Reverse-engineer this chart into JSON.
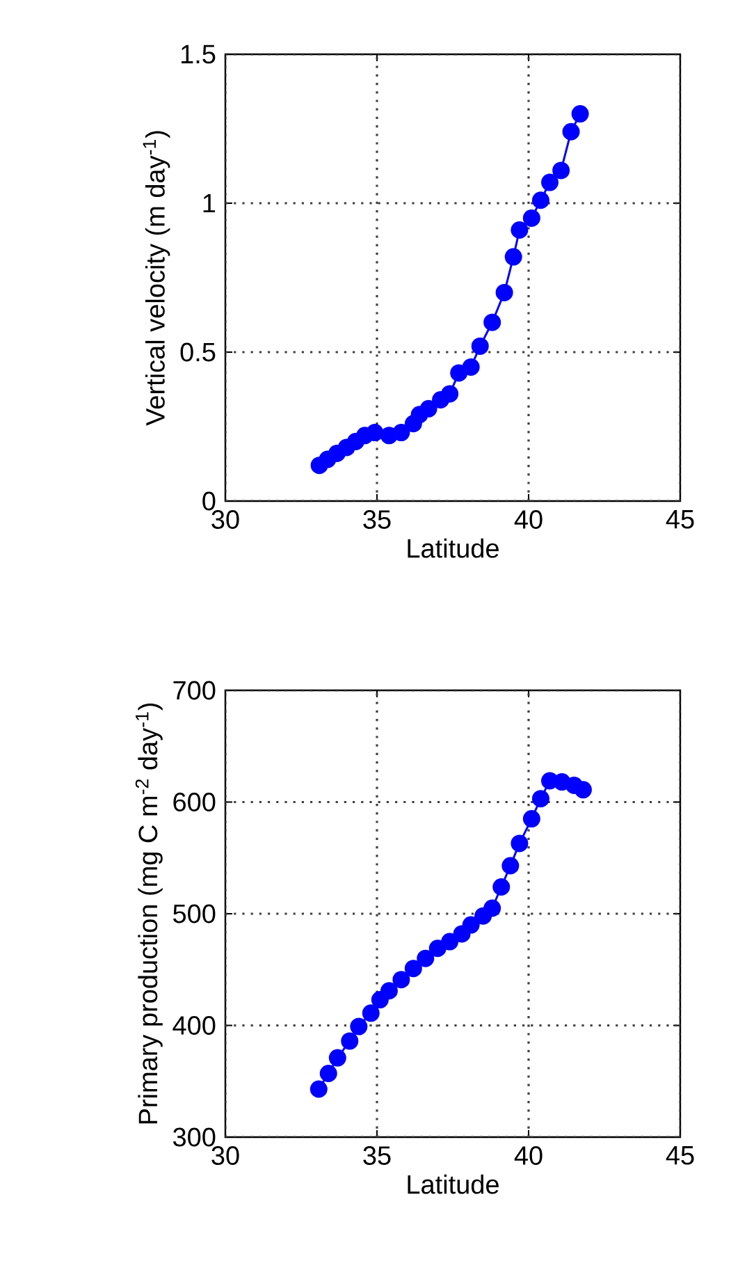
{
  "chart_data": [
    {
      "type": "line",
      "xlabel": "Latitude",
      "ylabel": "Vertical velocity (m day$^{-1}$)",
      "color": "#0000ff",
      "marker": "circle",
      "line_style": "solid",
      "grid": true,
      "xlim": [
        30,
        45
      ],
      "ylim": [
        0,
        1.5
      ],
      "xticks": [
        30,
        35,
        40,
        45
      ],
      "yticks": [
        0,
        0.5,
        1,
        1.5
      ],
      "x": [
        33.1,
        33.37,
        33.68,
        34.0,
        34.3,
        34.6,
        34.93,
        35.4,
        35.8,
        36.2,
        36.4,
        36.7,
        37.1,
        37.4,
        37.7,
        38.1,
        38.4,
        38.8,
        39.2,
        39.5,
        39.7,
        40.1,
        40.4,
        40.7,
        41.07,
        41.4,
        41.7
      ],
      "values": [
        0.12,
        0.14,
        0.16,
        0.18,
        0.2,
        0.22,
        0.23,
        0.22,
        0.23,
        0.26,
        0.29,
        0.31,
        0.34,
        0.36,
        0.43,
        0.45,
        0.52,
        0.6,
        0.7,
        0.82,
        0.91,
        0.95,
        1.01,
        1.07,
        1.11,
        1.24,
        1.3
      ]
    },
    {
      "type": "line",
      "xlabel": "Latitude",
      "ylabel": "Primary production (mg C  m$^{-2}$  day$^{-1}$)",
      "color": "#0000ff",
      "marker": "circle",
      "line_style": "solid",
      "grid": true,
      "xlim": [
        30,
        45
      ],
      "ylim": [
        300,
        700
      ],
      "xticks": [
        30,
        35,
        40,
        45
      ],
      "yticks": [
        300,
        400,
        500,
        600,
        700
      ],
      "x": [
        33.08,
        33.4,
        33.7,
        34.1,
        34.4,
        34.8,
        35.1,
        35.4,
        35.8,
        36.2,
        36.6,
        37.0,
        37.4,
        37.8,
        38.1,
        38.5,
        38.8,
        39.1,
        39.4,
        39.7,
        40.1,
        40.4,
        40.7,
        41.1,
        41.5,
        41.8
      ],
      "values": [
        343,
        357,
        371,
        386,
        399,
        411,
        423,
        431,
        441,
        451,
        460,
        469,
        475,
        482,
        490,
        498,
        505,
        524,
        543,
        563,
        585,
        603,
        619,
        618,
        615,
        611
      ]
    }
  ]
}
